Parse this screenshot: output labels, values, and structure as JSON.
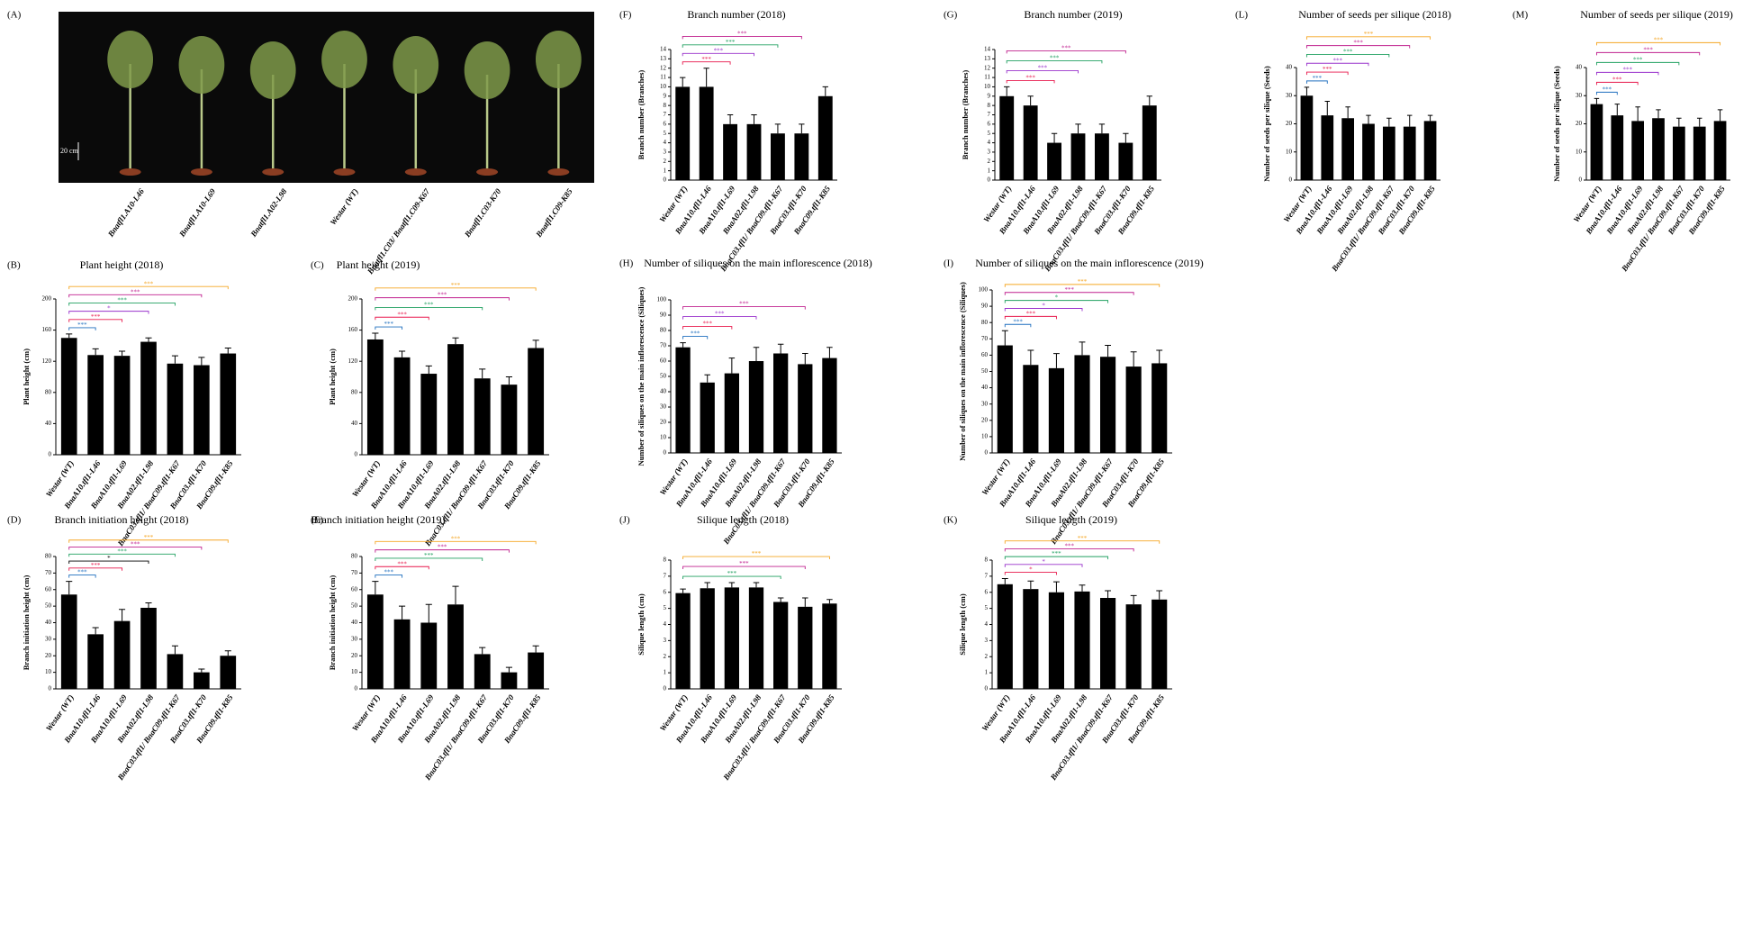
{
  "chart_data": [
    {
      "type": "photo",
      "panel": "(A)",
      "scale_label": "20 cm",
      "categories": [
        "Bnatfl1.A10-L46",
        "Bnatfl1.A10-L69",
        "Bnatfl1.A02-L98",
        "Westar (WT)",
        "Bnatfl1.C03/ Bnatfl1.C09-K67",
        "Bnatfl1.C03-K70",
        "Bnatfl1.C09-K85"
      ]
    },
    {
      "type": "bar",
      "panel": "(F)",
      "title": "Branch number (2018)",
      "y_label": "Branch number (Branches)",
      "color": "#000000",
      "categories": [
        "Westar (WT)",
        "BnaA10.tfl1-L46",
        "BnaA10.tfl1-L69",
        "BnaA02.tfl1-L98",
        "BnaC03.tfl1/ BnaC09.tfl1-K67",
        "BnaC03.tfl1-K70",
        "BnaC09.tfl1-K85"
      ],
      "values": [
        10,
        10,
        6,
        6,
        5,
        5,
        9
      ],
      "errors": [
        1,
        2,
        1,
        1,
        1,
        1,
        1
      ],
      "ylim": [
        0,
        14
      ],
      "yticks": [
        0,
        1,
        2,
        3,
        4,
        5,
        6,
        7,
        8,
        9,
        10,
        11,
        12,
        13,
        14
      ],
      "comparisons": [
        {
          "category": "BnaA10.tfl1-L69",
          "label": "***",
          "color": "#e8174b"
        },
        {
          "category": "BnaA02.tfl1-L98",
          "label": "***",
          "color": "#9932cc"
        },
        {
          "category": "BnaC03.tfl1/ BnaC09.tfl1-K67",
          "label": "***",
          "color": "#20a060"
        },
        {
          "category": "BnaC03.tfl1-K70",
          "label": "***",
          "color": "#c0208f"
        }
      ]
    },
    {
      "type": "bar",
      "panel": "(G)",
      "title": "Branch number (2019)",
      "y_label": "Branch number (Branches)",
      "color": "#000000",
      "categories": [
        "Westar (WT)",
        "BnaA10.tfl1-L46",
        "BnaA10.tfl1-L69",
        "BnaA02.tfl1-L98",
        "BnaC03.tfl1/ BnaC09.tfl1-K67",
        "BnaC03.tfl1-K70",
        "BnaC09.tfl1-K85"
      ],
      "values": [
        9,
        8,
        4,
        5,
        5,
        4,
        8
      ],
      "errors": [
        1,
        1,
        1,
        1,
        1,
        1,
        1
      ],
      "ylim": [
        0,
        14
      ],
      "yticks": [
        0,
        1,
        2,
        3,
        4,
        5,
        6,
        7,
        8,
        9,
        10,
        11,
        12,
        13,
        14
      ],
      "comparisons": [
        {
          "category": "BnaA10.tfl1-L69",
          "label": "***",
          "color": "#e8174b"
        },
        {
          "category": "BnaA02.tfl1-L98",
          "label": "***",
          "color": "#9932cc"
        },
        {
          "category": "BnaC03.tfl1/ BnaC09.tfl1-K67",
          "label": "***",
          "color": "#20a060"
        },
        {
          "category": "BnaC03.tfl1-K70",
          "label": "***",
          "color": "#c0208f"
        }
      ]
    },
    {
      "type": "bar",
      "panel": "(L)",
      "title": "Number of seeds per silique (2018)",
      "y_label": "Number of seeds per silique (Seeds)",
      "color": "#000000",
      "categories": [
        "Westar (WT)",
        "BnaA10.tfl1-L46",
        "BnaA10.tfl1-L69",
        "BnaA02.tfl1-L98",
        "BnaC03.tfl1/ BnaC09.tfl1-K67",
        "BnaC03.tfl1-K70",
        "BnaC09.tfl1-K85"
      ],
      "values": [
        30,
        23,
        22,
        20,
        19,
        19,
        21
      ],
      "errors": [
        3,
        5,
        4,
        3,
        3,
        4,
        2
      ],
      "ylim": [
        0,
        40
      ],
      "yticks": [
        0,
        10,
        20,
        30,
        40
      ],
      "comparisons": [
        {
          "category": "BnaA10.tfl1-L46",
          "label": "***",
          "color": "#1f6fbf"
        },
        {
          "category": "BnaA10.tfl1-L69",
          "label": "***",
          "color": "#e8174b"
        },
        {
          "category": "BnaA02.tfl1-L98",
          "label": "***",
          "color": "#9932cc"
        },
        {
          "category": "BnaC03.tfl1/ BnaC09.tfl1-K67",
          "label": "***",
          "color": "#20a060"
        },
        {
          "category": "BnaC03.tfl1-K70",
          "label": "***",
          "color": "#c0208f"
        },
        {
          "category": "BnaC09.tfl1-K85",
          "label": "***",
          "color": "#f5a623"
        }
      ]
    },
    {
      "type": "bar",
      "panel": "(M)",
      "title": "Number of seeds per silique (2019)",
      "y_label": "Number of seeds per silique (Seeds)",
      "color": "#000000",
      "categories": [
        "Westar (WT)",
        "BnaA10.tfl1-L46",
        "BnaA10.tfl1-L69",
        "BnaA02.tfl1-L98",
        "BnaC03.tfl1/ BnaC09.tfl1-K67",
        "BnaC03.tfl1-K70",
        "BnaC09.tfl1-K85"
      ],
      "values": [
        27,
        23,
        21,
        22,
        19,
        19,
        21
      ],
      "errors": [
        2,
        4,
        5,
        3,
        3,
        3,
        4
      ],
      "ylim": [
        0,
        40
      ],
      "yticks": [
        0,
        10,
        20,
        30,
        40
      ],
      "comparisons": [
        {
          "category": "BnaA10.tfl1-L46",
          "label": "***",
          "color": "#1f6fbf"
        },
        {
          "category": "BnaA10.tfl1-L69",
          "label": "***",
          "color": "#e8174b"
        },
        {
          "category": "BnaA02.tfl1-L98",
          "label": "***",
          "color": "#9932cc"
        },
        {
          "category": "BnaC03.tfl1/ BnaC09.tfl1-K67",
          "label": "***",
          "color": "#20a060"
        },
        {
          "category": "BnaC03.tfl1-K70",
          "label": "***",
          "color": "#c0208f"
        },
        {
          "category": "BnaC09.tfl1-K85",
          "label": "***",
          "color": "#f5a623"
        }
      ]
    },
    {
      "type": "bar",
      "panel": "(B)",
      "title": "Plant height (2018)",
      "y_label": "Plant height (cm)",
      "color": "#000000",
      "categories": [
        "Westar (WT)",
        "BnaA10.tfl1-L46",
        "BnaA10.tfl1-L69",
        "BnaA02.tfl1-L98",
        "BnaC03.tfl1/ BnaC09.tfl1-K67",
        "BnaC03.tfl1-K70",
        "BnaC09.tfl1-K85"
      ],
      "values": [
        150,
        128,
        127,
        145,
        117,
        115,
        130
      ],
      "errors": [
        5,
        8,
        6,
        5,
        10,
        10,
        7
      ],
      "ylim": [
        0,
        200
      ],
      "yticks": [
        0,
        40,
        80,
        120,
        160,
        200
      ],
      "comparisons": [
        {
          "category": "BnaA10.tfl1-L46",
          "label": "***",
          "color": "#1f6fbf"
        },
        {
          "category": "BnaA10.tfl1-L69",
          "label": "***",
          "color": "#e8174b"
        },
        {
          "category": "BnaA02.tfl1-L98",
          "label": "*",
          "color": "#9932cc"
        },
        {
          "category": "BnaC03.tfl1/ BnaC09.tfl1-K67",
          "label": "***",
          "color": "#20a060"
        },
        {
          "category": "BnaC03.tfl1-K70",
          "label": "***",
          "color": "#c0208f"
        },
        {
          "category": "BnaC09.tfl1-K85",
          "label": "***",
          "color": "#f5a623"
        }
      ]
    },
    {
      "type": "bar",
      "panel": "(C)",
      "title": "Plant height (2019)",
      "y_label": "Plant height (cm)",
      "color": "#000000",
      "categories": [
        "Westar (WT)",
        "BnaA10.tfl1-L46",
        "BnaA10.tfl1-L69",
        "BnaA02.tfl1-L98",
        "BnaC03.tfl1/ BnaC09.tfl1-K67",
        "BnaC03.tfl1-K70",
        "BnaC09.tfl1-K85"
      ],
      "values": [
        148,
        125,
        104,
        142,
        98,
        90,
        137
      ],
      "errors": [
        8,
        8,
        10,
        8,
        12,
        10,
        10
      ],
      "ylim": [
        0,
        200
      ],
      "yticks": [
        0,
        40,
        80,
        120,
        160,
        200
      ],
      "comparisons": [
        {
          "category": "BnaA10.tfl1-L46",
          "label": "***",
          "color": "#1f6fbf"
        },
        {
          "category": "BnaA10.tfl1-L69",
          "label": "***",
          "color": "#e8174b"
        },
        {
          "category": "BnaC03.tfl1/ BnaC09.tfl1-K67",
          "label": "***",
          "color": "#20a060"
        },
        {
          "category": "BnaC03.tfl1-K70",
          "label": "***",
          "color": "#c0208f"
        },
        {
          "category": "BnaC09.tfl1-K85",
          "label": "***",
          "color": "#f5a623"
        }
      ]
    },
    {
      "type": "bar",
      "panel": "(H)",
      "title": "Number of siliques on the main inflorescence (2018)",
      "y_label": "Number of siliques on the main inflorescence (Siliques)",
      "color": "#000000",
      "categories": [
        "Westar (WT)",
        "BnaA10.tfl1-L46",
        "BnaA10.tfl1-L69",
        "BnaA02.tfl1-L98",
        "BnaC03.tfl1/ BnaC09.tfl1-K67",
        "BnaC03.tfl1-K70",
        "BnaC09.tfl1-K85"
      ],
      "values": [
        69,
        46,
        52,
        60,
        65,
        58,
        62
      ],
      "errors": [
        3,
        5,
        10,
        9,
        6,
        7,
        7
      ],
      "ylim": [
        0,
        100
      ],
      "yticks": [
        0,
        10,
        20,
        30,
        40,
        50,
        60,
        70,
        80,
        90,
        100
      ],
      "comparisons": [
        {
          "category": "BnaA10.tfl1-L46",
          "label": "***",
          "color": "#1f6fbf"
        },
        {
          "category": "BnaA10.tfl1-L69",
          "label": "***",
          "color": "#e8174b"
        },
        {
          "category": "BnaA02.tfl1-L98",
          "label": "***",
          "color": "#9932cc"
        },
        {
          "category": "BnaC03.tfl1-K70",
          "label": "***",
          "color": "#c0208f"
        }
      ]
    },
    {
      "type": "bar",
      "panel": "(I)",
      "title": "Number of siliques on the main inflorescence (2019)",
      "y_label": "Number of siliques on the main inflorescence (Siliques)",
      "color": "#000000",
      "categories": [
        "Westar (WT)",
        "BnaA10.tfl1-L46",
        "BnaA10.tfl1-L69",
        "BnaA02.tfl1-L98",
        "BnaC03.tfl1/ BnaC09.tfl1-K67",
        "BnaC03.tfl1-K70",
        "BnaC09.tfl1-K85"
      ],
      "values": [
        66,
        54,
        52,
        60,
        59,
        53,
        55
      ],
      "errors": [
        9,
        9,
        9,
        8,
        7,
        9,
        8
      ],
      "ylim": [
        0,
        100
      ],
      "yticks": [
        0,
        10,
        20,
        30,
        40,
        50,
        60,
        70,
        80,
        90,
        100
      ],
      "comparisons": [
        {
          "category": "BnaA10.tfl1-L46",
          "label": "***",
          "color": "#1f6fbf"
        },
        {
          "category": "BnaA10.tfl1-L69",
          "label": "***",
          "color": "#e8174b"
        },
        {
          "category": "BnaA02.tfl1-L98",
          "label": "*",
          "color": "#9932cc"
        },
        {
          "category": "BnaC03.tfl1/ BnaC09.tfl1-K67",
          "label": "*",
          "color": "#20a060"
        },
        {
          "category": "BnaC03.tfl1-K70",
          "label": "***",
          "color": "#c0208f"
        },
        {
          "category": "BnaC09.tfl1-K85",
          "label": "***",
          "color": "#f5a623"
        }
      ]
    },
    {
      "type": "bar",
      "panel": "(D)",
      "title": "Branch initiation height  (2018)",
      "y_label": "Branch initiation height (cm)",
      "color": "#000000",
      "categories": [
        "Westar (WT)",
        "BnaA10.tfl1-L46",
        "BnaA10.tfl1-L69",
        "BnaA02.tfl1-L98",
        "BnaC03.tfl1/ BnaC09.tfl1-K67",
        "BnaC03.tfl1-K70",
        "BnaC09.tfl1-K85"
      ],
      "values": [
        57,
        33,
        41,
        49,
        21,
        10,
        20
      ],
      "errors": [
        8,
        4,
        7,
        3,
        5,
        2,
        3
      ],
      "ylim": [
        0,
        80
      ],
      "yticks": [
        0,
        10,
        20,
        30,
        40,
        50,
        60,
        70,
        80
      ],
      "comparisons": [
        {
          "category": "BnaA10.tfl1-L46",
          "label": "***",
          "color": "#1f6fbf"
        },
        {
          "category": "BnaA10.tfl1-L69",
          "label": "***",
          "color": "#e8174b"
        },
        {
          "category": "BnaA02.tfl1-L98",
          "label": "*",
          "color": "#000000"
        },
        {
          "category": "BnaC03.tfl1/ BnaC09.tfl1-K67",
          "label": "***",
          "color": "#20a060"
        },
        {
          "category": "BnaC03.tfl1-K70",
          "label": "***",
          "color": "#c0208f"
        },
        {
          "category": "BnaC09.tfl1-K85",
          "label": "***",
          "color": "#f5a623"
        }
      ]
    },
    {
      "type": "bar",
      "panel": "(E)",
      "title": "Branch initiation height  (2019)",
      "y_label": "Branch initiation height (cm)",
      "color": "#000000",
      "categories": [
        "Westar (WT)",
        "BnaA10.tfl1-L46",
        "BnaA10.tfl1-L69",
        "BnaA02.tfl1-L98",
        "BnaC03.tfl1/ BnaC09.tfl1-K67",
        "BnaC03.tfl1-K70",
        "BnaC09.tfl1-K85"
      ],
      "values": [
        57,
        42,
        40,
        51,
        21,
        10,
        22
      ],
      "errors": [
        8,
        8,
        11,
        11,
        4,
        3,
        4
      ],
      "ylim": [
        0,
        80
      ],
      "yticks": [
        0,
        10,
        20,
        30,
        40,
        50,
        60,
        70,
        80
      ],
      "comparisons": [
        {
          "category": "BnaA10.tfl1-L46",
          "label": "***",
          "color": "#1f6fbf"
        },
        {
          "category": "BnaA10.tfl1-L69",
          "label": "***",
          "color": "#e8174b"
        },
        {
          "category": "BnaC03.tfl1/ BnaC09.tfl1-K67",
          "label": "***",
          "color": "#20a060"
        },
        {
          "category": "BnaC03.tfl1-K70",
          "label": "***",
          "color": "#c0208f"
        },
        {
          "category": "BnaC09.tfl1-K85",
          "label": "***",
          "color": "#f5a623"
        }
      ]
    },
    {
      "type": "bar",
      "panel": "(J)",
      "title": "Silique length  (2018)",
      "y_label": "Silique length (cm)",
      "color": "#000000",
      "categories": [
        "Westar (WT)",
        "BnaA10.tfl1-L46",
        "BnaA10.tfl1-L69",
        "BnaA02.tfl1-L98",
        "BnaC03.tfl1/ BnaC09.tfl1-K67",
        "BnaC03.tfl1-K70",
        "BnaC09.tfl1-K85"
      ],
      "values": [
        5.95,
        6.25,
        6.3,
        6.3,
        5.4,
        5.1,
        5.3
      ],
      "errors": [
        0.25,
        0.35,
        0.3,
        0.3,
        0.25,
        0.55,
        0.25
      ],
      "ylim": [
        0,
        8
      ],
      "yticks": [
        0,
        1,
        2,
        3,
        4,
        5,
        6,
        7,
        8
      ],
      "comparisons": [
        {
          "category": "BnaC03.tfl1/ BnaC09.tfl1-K67",
          "label": "***",
          "color": "#20a060"
        },
        {
          "category": "BnaC03.tfl1-K70",
          "label": "***",
          "color": "#c0208f"
        },
        {
          "category": "BnaC09.tfl1-K85",
          "label": "***",
          "color": "#f5a623"
        }
      ]
    },
    {
      "type": "bar",
      "panel": "(K)",
      "title": "Silique length  (2019)",
      "y_label": "Silique length (cm)",
      "color": "#000000",
      "categories": [
        "Westar (WT)",
        "BnaA10.tfl1-L46",
        "BnaA10.tfl1-L69",
        "BnaA02.tfl1-L98",
        "BnaC03.tfl1/ BnaC09.tfl1-K67",
        "BnaC03.tfl1-K70",
        "BnaC09.tfl1-K85"
      ],
      "values": [
        6.5,
        6.2,
        6.0,
        6.05,
        5.65,
        5.25,
        5.55
      ],
      "errors": [
        0.35,
        0.5,
        0.65,
        0.4,
        0.45,
        0.55,
        0.55
      ],
      "ylim": [
        0,
        8
      ],
      "yticks": [
        0,
        1,
        2,
        3,
        4,
        5,
        6,
        7,
        8
      ],
      "comparisons": [
        {
          "category": "BnaA10.tfl1-L69",
          "label": "*",
          "color": "#e8174b"
        },
        {
          "category": "BnaA02.tfl1-L98",
          "label": "*",
          "color": "#9932cc"
        },
        {
          "category": "BnaC03.tfl1/ BnaC09.tfl1-K67",
          "label": "***",
          "color": "#20a060"
        },
        {
          "category": "BnaC03.tfl1-K70",
          "label": "***",
          "color": "#c0208f"
        },
        {
          "category": "BnaC09.tfl1-K85",
          "label": "***",
          "color": "#f5a623"
        }
      ]
    }
  ]
}
